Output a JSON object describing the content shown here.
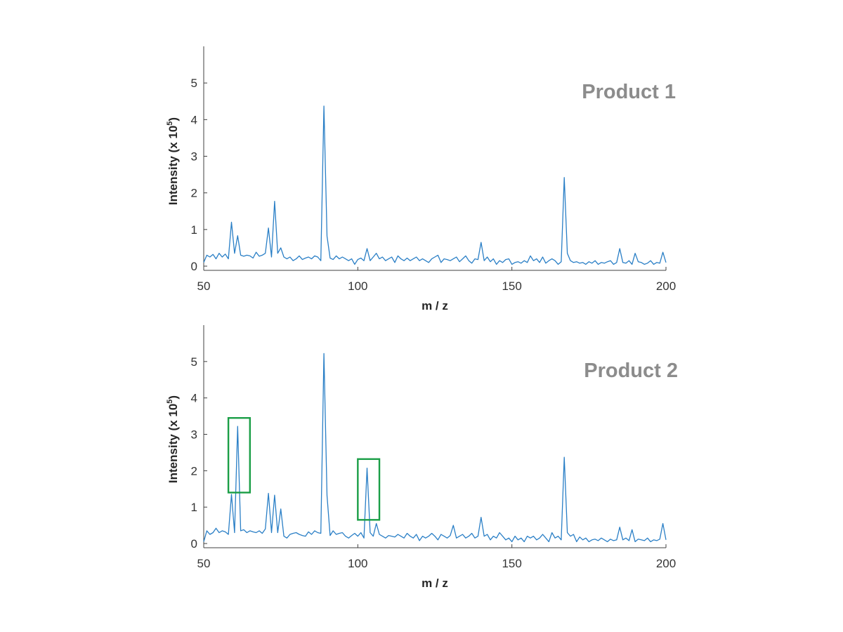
{
  "chart_data": [
    {
      "type": "line",
      "title": "Product 1",
      "xlabel": "m / z",
      "ylabel": "Intensity (x 10",
      "ylabel_sup": "5",
      "ylabel_end": ")",
      "xlim": [
        50,
        200
      ],
      "ylim": [
        0,
        6
      ],
      "xticks": [
        50,
        100,
        150,
        200
      ],
      "xtick_labels": [
        "50",
        "100",
        "150",
        "200"
      ],
      "yticks": [
        0,
        1,
        2,
        3,
        4,
        5
      ],
      "ytick_labels": [
        "0",
        "1",
        "2",
        "3",
        "4",
        "5"
      ],
      "grid": false,
      "line_color": "#2a7fc6",
      "series": [
        {
          "x": [
            50,
            51,
            52,
            53,
            54,
            55,
            56,
            57,
            58,
            59,
            60,
            61,
            62,
            63,
            64,
            65,
            66,
            67,
            68,
            69,
            70,
            71,
            72,
            73,
            74,
            75,
            76,
            77,
            78,
            79,
            80,
            81,
            82,
            83,
            84,
            85,
            86,
            87,
            88,
            89,
            90,
            91,
            92,
            93,
            94,
            95,
            96,
            97,
            98,
            99,
            100,
            101,
            102,
            103,
            104,
            105,
            106,
            107,
            108,
            109,
            110,
            111,
            112,
            113,
            114,
            115,
            116,
            117,
            118,
            119,
            120,
            121,
            122,
            123,
            124,
            125,
            126,
            127,
            128,
            129,
            130,
            131,
            132,
            133,
            134,
            135,
            136,
            137,
            138,
            139,
            140,
            141,
            142,
            143,
            144,
            145,
            146,
            147,
            148,
            149,
            150,
            151,
            152,
            153,
            154,
            155,
            156,
            157,
            158,
            159,
            160,
            161,
            162,
            163,
            164,
            165,
            166,
            167,
            168,
            169,
            170,
            171,
            172,
            173,
            174,
            175,
            176,
            177,
            178,
            179,
            180,
            181,
            182,
            183,
            184,
            185,
            186,
            187,
            188,
            189,
            190,
            191,
            192,
            193,
            194,
            195,
            196,
            197,
            198,
            199,
            200
          ],
          "y": [
            0.1,
            0.3,
            0.25,
            0.32,
            0.2,
            0.35,
            0.25,
            0.33,
            0.2,
            1.2,
            0.35,
            0.83,
            0.3,
            0.27,
            0.3,
            0.28,
            0.22,
            0.38,
            0.27,
            0.3,
            0.35,
            1.04,
            0.25,
            1.77,
            0.35,
            0.5,
            0.25,
            0.2,
            0.25,
            0.15,
            0.2,
            0.28,
            0.18,
            0.22,
            0.25,
            0.2,
            0.28,
            0.25,
            0.15,
            4.37,
            0.82,
            0.22,
            0.18,
            0.28,
            0.2,
            0.25,
            0.2,
            0.15,
            0.2,
            0.05,
            0.18,
            0.22,
            0.15,
            0.48,
            0.15,
            0.25,
            0.35,
            0.2,
            0.25,
            0.15,
            0.2,
            0.25,
            0.1,
            0.28,
            0.2,
            0.15,
            0.22,
            0.15,
            0.2,
            0.25,
            0.15,
            0.2,
            0.15,
            0.1,
            0.2,
            0.25,
            0.3,
            0.1,
            0.2,
            0.18,
            0.15,
            0.2,
            0.25,
            0.12,
            0.2,
            0.28,
            0.15,
            0.08,
            0.2,
            0.18,
            0.65,
            0.15,
            0.25,
            0.12,
            0.2,
            0.05,
            0.15,
            0.1,
            0.18,
            0.2,
            0.05,
            0.1,
            0.12,
            0.08,
            0.15,
            0.1,
            0.28,
            0.15,
            0.2,
            0.1,
            0.25,
            0.08,
            0.15,
            0.2,
            0.15,
            0.05,
            0.12,
            2.42,
            0.35,
            0.15,
            0.1,
            0.12,
            0.08,
            0.1,
            0.05,
            0.12,
            0.08,
            0.15,
            0.05,
            0.1,
            0.08,
            0.12,
            0.15,
            0.05,
            0.1,
            0.48,
            0.1,
            0.08,
            0.15,
            0.05,
            0.35,
            0.12,
            0.1,
            0.05,
            0.08,
            0.15,
            0.05,
            0.1,
            0.08,
            0.38,
            0.1
          ]
        }
      ],
      "highlight_boxes": []
    },
    {
      "type": "line",
      "title": "Product 2",
      "xlabel": "m / z",
      "ylabel": "Intensity (x 10",
      "ylabel_sup": "5",
      "ylabel_end": ")",
      "xlim": [
        50,
        200
      ],
      "ylim": [
        0,
        6
      ],
      "xticks": [
        50,
        100,
        150,
        200
      ],
      "xtick_labels": [
        "50",
        "100",
        "150",
        "200"
      ],
      "yticks": [
        0,
        1,
        2,
        3,
        4,
        5
      ],
      "ytick_labels": [
        "0",
        "1",
        "2",
        "3",
        "4",
        "5"
      ],
      "grid": false,
      "line_color": "#2a7fc6",
      "highlight_color": "#1a9e46",
      "series": [
        {
          "x": [
            50,
            51,
            52,
            53,
            54,
            55,
            56,
            57,
            58,
            59,
            60,
            61,
            62,
            63,
            64,
            65,
            66,
            67,
            68,
            69,
            70,
            71,
            72,
            73,
            74,
            75,
            76,
            77,
            78,
            79,
            80,
            81,
            82,
            83,
            84,
            85,
            86,
            87,
            88,
            89,
            90,
            91,
            92,
            93,
            94,
            95,
            96,
            97,
            98,
            99,
            100,
            101,
            102,
            103,
            104,
            105,
            106,
            107,
            108,
            109,
            110,
            111,
            112,
            113,
            114,
            115,
            116,
            117,
            118,
            119,
            120,
            121,
            122,
            123,
            124,
            125,
            126,
            127,
            128,
            129,
            130,
            131,
            132,
            133,
            134,
            135,
            136,
            137,
            138,
            139,
            140,
            141,
            142,
            143,
            144,
            145,
            146,
            147,
            148,
            149,
            150,
            151,
            152,
            153,
            154,
            155,
            156,
            157,
            158,
            159,
            160,
            161,
            162,
            163,
            164,
            165,
            166,
            167,
            168,
            169,
            170,
            171,
            172,
            173,
            174,
            175,
            176,
            177,
            178,
            179,
            180,
            181,
            182,
            183,
            184,
            185,
            186,
            187,
            188,
            189,
            190,
            191,
            192,
            193,
            194,
            195,
            196,
            197,
            198,
            199,
            200
          ],
          "y": [
            0.05,
            0.35,
            0.25,
            0.3,
            0.42,
            0.3,
            0.35,
            0.32,
            0.25,
            1.35,
            0.3,
            3.22,
            0.35,
            0.38,
            0.3,
            0.35,
            0.32,
            0.3,
            0.35,
            0.28,
            0.4,
            1.38,
            0.3,
            1.33,
            0.3,
            0.95,
            0.2,
            0.15,
            0.25,
            0.28,
            0.3,
            0.25,
            0.22,
            0.2,
            0.32,
            0.25,
            0.35,
            0.3,
            0.28,
            5.22,
            1.32,
            0.22,
            0.35,
            0.25,
            0.28,
            0.3,
            0.2,
            0.15,
            0.22,
            0.28,
            0.2,
            0.3,
            0.15,
            2.07,
            0.3,
            0.2,
            0.55,
            0.25,
            0.2,
            0.15,
            0.22,
            0.2,
            0.18,
            0.25,
            0.2,
            0.15,
            0.28,
            0.2,
            0.15,
            0.25,
            0.08,
            0.2,
            0.15,
            0.2,
            0.28,
            0.2,
            0.1,
            0.25,
            0.2,
            0.15,
            0.22,
            0.5,
            0.15,
            0.2,
            0.25,
            0.15,
            0.2,
            0.28,
            0.15,
            0.2,
            0.72,
            0.2,
            0.25,
            0.1,
            0.2,
            0.15,
            0.3,
            0.2,
            0.1,
            0.15,
            0.05,
            0.2,
            0.1,
            0.15,
            0.05,
            0.2,
            0.15,
            0.2,
            0.1,
            0.15,
            0.25,
            0.15,
            0.05,
            0.3,
            0.15,
            0.2,
            0.1,
            2.37,
            0.3,
            0.2,
            0.25,
            0.05,
            0.18,
            0.1,
            0.15,
            0.05,
            0.1,
            0.12,
            0.08,
            0.15,
            0.1,
            0.05,
            0.12,
            0.08,
            0.1,
            0.45,
            0.1,
            0.15,
            0.08,
            0.38,
            0.05,
            0.12,
            0.1,
            0.08,
            0.15,
            0.05,
            0.1,
            0.08,
            0.12,
            0.55,
            0.1
          ]
        }
      ],
      "highlight_boxes": [
        {
          "xmin": 58,
          "xmax": 65,
          "ymin": 1.4,
          "ymax": 3.45
        },
        {
          "xmin": 100,
          "xmax": 107,
          "ymin": 0.65,
          "ymax": 2.32
        }
      ]
    }
  ]
}
